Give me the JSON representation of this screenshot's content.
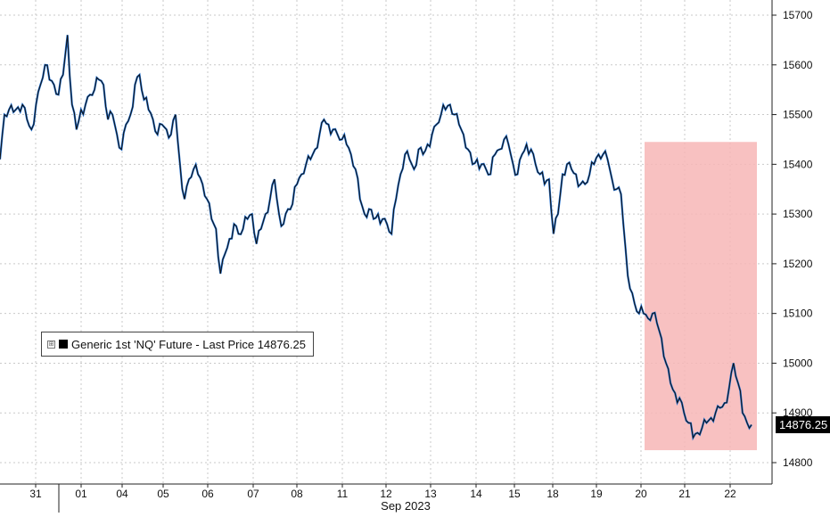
{
  "chart_data": {
    "type": "line",
    "title": "",
    "xlabel": "Sep 2023",
    "ylabel": "",
    "ylim": [
      14770,
      15730
    ],
    "y_ticks": [
      14800,
      14900,
      15000,
      15100,
      15200,
      15300,
      15400,
      15500,
      15600,
      15700
    ],
    "x_tick_labels": [
      "31",
      "01",
      "04",
      "05",
      "06",
      "07",
      "08",
      "11",
      "12",
      "13",
      "14",
      "15",
      "18",
      "19",
      "20",
      "21",
      "22"
    ],
    "grid": true,
    "series": [
      {
        "name": "Generic 1st 'NQ' Future - Last Price",
        "values": [
          15410,
          15500,
          15510,
          15505,
          15515,
          15520,
          15490,
          15470,
          15520,
          15560,
          15600,
          15570,
          15560,
          15540,
          15580,
          15660,
          15520,
          15470,
          15510,
          15520,
          15540,
          15550,
          15570,
          15560,
          15490,
          15500,
          15460,
          15430,
          15480,
          15500,
          15560,
          15580,
          15530,
          15510,
          15490,
          15460,
          15480,
          15470,
          15460,
          15500,
          15400,
          15330,
          15370,
          15390,
          15380,
          15360,
          15330,
          15290,
          15270,
          15180,
          15220,
          15250,
          15280,
          15260,
          15270,
          15290,
          15300,
          15240,
          15270,
          15300,
          15330,
          15370,
          15300,
          15280,
          15310,
          15320,
          15360,
          15380,
          15400,
          15410,
          15430,
          15460,
          15490,
          15480,
          15470,
          15460,
          15450,
          15440,
          15420,
          15390,
          15330,
          15300,
          15310,
          15290,
          15300,
          15290,
          15280,
          15260,
          15330,
          15380,
          15420,
          15410,
          15390,
          15430,
          15420,
          15440,
          15460,
          15480,
          15500,
          15510,
          15520,
          15500,
          15480,
          15460,
          15430,
          15400,
          15410,
          15400,
          15390,
          15380,
          15420,
          15430,
          15450,
          15440,
          15400,
          15380,
          15420,
          15440,
          15430,
          15400,
          15380,
          15360,
          15370,
          15260,
          15300,
          15380,
          15400,
          15390,
          15380,
          15360,
          15360,
          15380,
          15400,
          15420,
          15420,
          15410,
          15370,
          15350,
          15340,
          15230,
          15150,
          15120,
          15100,
          15100,
          15090,
          15100,
          15080,
          15050,
          15000,
          14960,
          14940,
          14930,
          14900,
          14880,
          14850,
          14860,
          14870,
          14880,
          14890,
          14900,
          14910,
          14920,
          14950,
          15000,
          14960,
          14900,
          14880,
          14876.25
        ]
      }
    ],
    "last_value_label": "14876.25",
    "highlight": {
      "x_start": "20",
      "x_end": "22",
      "color": "#f7b6b6"
    }
  },
  "legend": {
    "expand_glyph": "⊞",
    "text": "Generic 1st 'NQ' Future - Last Price 14876.25"
  },
  "colors": {
    "line_black": "#111111",
    "line_blue": "#1f6fd1",
    "grid": "#c9c9c9",
    "highlight": "#f7b6b6"
  }
}
